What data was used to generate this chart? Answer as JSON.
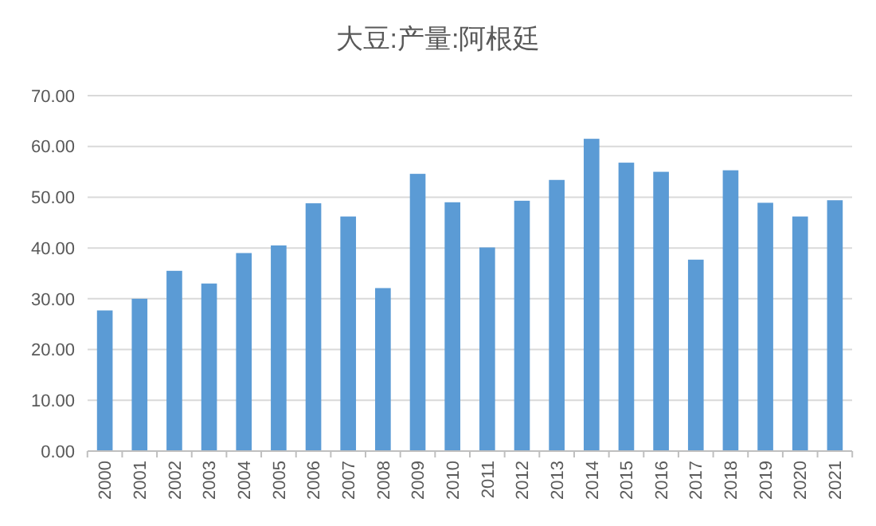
{
  "chart_data": {
    "type": "bar",
    "title": "大豆:产量:阿根廷",
    "categories": [
      "2000",
      "2001",
      "2002",
      "2003",
      "2004",
      "2005",
      "2006",
      "2007",
      "2008",
      "2009",
      "2010",
      "2011",
      "2012",
      "2013",
      "2014",
      "2015",
      "2016",
      "2017",
      "2018",
      "2019",
      "2020",
      "2021"
    ],
    "values": [
      27.7,
      30.0,
      35.5,
      33.0,
      39.0,
      40.5,
      48.8,
      46.2,
      32.1,
      54.6,
      49.0,
      40.1,
      49.3,
      53.4,
      61.5,
      56.8,
      55.0,
      37.7,
      55.3,
      48.9,
      46.2,
      49.4
    ],
    "color": "#5b9bd5",
    "ylim": [
      0,
      70
    ],
    "yticks": [
      {
        "value": 0,
        "label": "0.00"
      },
      {
        "value": 10,
        "label": "10.00"
      },
      {
        "value": 20,
        "label": "20.00"
      },
      {
        "value": 30,
        "label": "30.00"
      },
      {
        "value": 40,
        "label": "40.00"
      },
      {
        "value": 50,
        "label": "50.00"
      },
      {
        "value": 60,
        "label": "60.00"
      },
      {
        "value": 70,
        "label": "70.00"
      }
    ],
    "grid": "y"
  }
}
